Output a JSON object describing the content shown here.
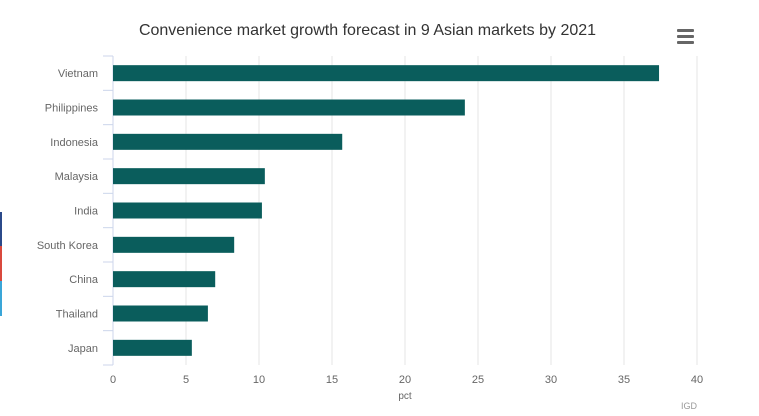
{
  "title": "Convenience market growth forecast in 9 Asian markets by 2021",
  "credits": "IGD",
  "colors": {
    "bar": "#0a5d5c",
    "grid": "#e6e6e6",
    "axis": "#ccd6eb",
    "text": "#333333",
    "tick": "#666666"
  },
  "side_strip_colors": [
    "#2b4a8a",
    "#d9493d",
    "#3aa6d8"
  ],
  "menu_icon": "hamburger-menu-icon",
  "chart_data": {
    "type": "bar",
    "orientation": "horizontal",
    "title": "Convenience market growth forecast in 9 Asian markets by 2021",
    "categories": [
      "Vietnam",
      "Philippines",
      "Indonesia",
      "Malaysia",
      "India",
      "South Korea",
      "China",
      "Thailand",
      "Japan"
    ],
    "values": [
      37.4,
      24.1,
      15.7,
      10.4,
      10.2,
      8.3,
      7.0,
      6.5,
      5.4
    ],
    "xlabel": "pct",
    "ylabel": "",
    "xlim": [
      0,
      40
    ],
    "xticks": [
      "0",
      "5",
      "10",
      "15",
      "20",
      "25",
      "30",
      "35",
      "40"
    ],
    "grid": true,
    "legend": "none"
  }
}
